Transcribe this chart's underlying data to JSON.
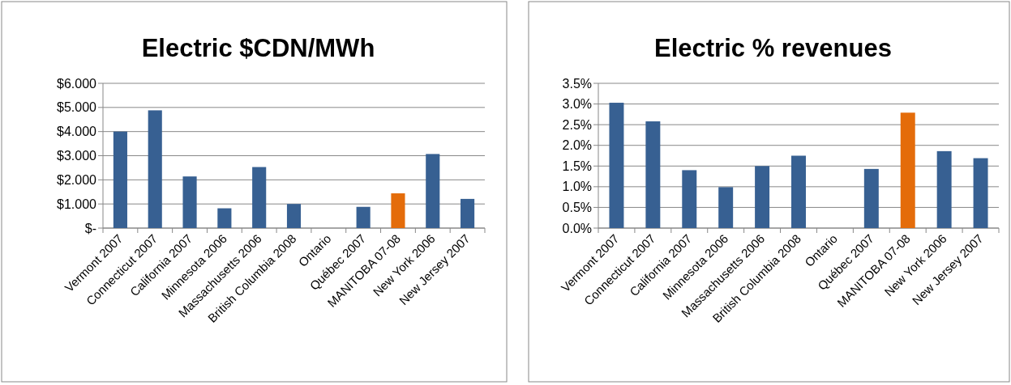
{
  "chart_data": [
    {
      "type": "bar",
      "title": "Electric $CDN/MWh",
      "categories": [
        "Vermont 2007",
        "Connecticut 2007",
        "California 2007",
        "Minnesota 2006",
        "Massachusetts 2006",
        "British Columbia 2008",
        "Ontario",
        "Québec 2007",
        "MANITOBA 07-08",
        "New York 2006",
        "New Jersey 2007"
      ],
      "values": [
        4.0,
        4.88,
        2.14,
        0.82,
        2.53,
        1.0,
        null,
        0.88,
        1.44,
        3.07,
        1.21
      ],
      "colors": [
        "#376092",
        "#376092",
        "#376092",
        "#376092",
        "#376092",
        "#376092",
        null,
        "#376092",
        "#e46c0a",
        "#376092",
        "#376092"
      ],
      "ylim": [
        0,
        6
      ],
      "yticks": [
        {
          "value": 0,
          "label": "$-"
        },
        {
          "value": 1,
          "label": "$1.000"
        },
        {
          "value": 2,
          "label": "$2.000"
        },
        {
          "value": 3,
          "label": "$3.000"
        },
        {
          "value": 4,
          "label": "$4.000"
        },
        {
          "value": 5,
          "label": "$5.000"
        },
        {
          "value": 6,
          "label": "$6.000"
        }
      ],
      "grid": "y"
    },
    {
      "type": "bar",
      "title": "Electric % revenues",
      "categories": [
        "Vermont 2007",
        "Connecticut 2007",
        "California 2007",
        "Minnesota 2006",
        "Massachusetts 2006",
        "British Columbia 2008",
        "Ontario",
        "Québec 2007",
        "MANITOBA 07-08",
        "New York 2006",
        "New Jersey 2007"
      ],
      "values": [
        3.03,
        2.58,
        1.4,
        0.99,
        1.5,
        1.75,
        null,
        1.43,
        2.79,
        1.86,
        1.69
      ],
      "colors": [
        "#376092",
        "#376092",
        "#376092",
        "#376092",
        "#376092",
        "#376092",
        null,
        "#376092",
        "#e46c0a",
        "#376092",
        "#376092"
      ],
      "ylim": [
        0,
        3.5
      ],
      "yticks": [
        {
          "value": 0,
          "label": "0.0%"
        },
        {
          "value": 0.5,
          "label": "0.5%"
        },
        {
          "value": 1,
          "label": "1.0%"
        },
        {
          "value": 1.5,
          "label": "1.5%"
        },
        {
          "value": 2,
          "label": "2.0%"
        },
        {
          "value": 2.5,
          "label": "2.5%"
        },
        {
          "value": 3,
          "label": "3.0%"
        },
        {
          "value": 3.5,
          "label": "3.5%"
        }
      ],
      "grid": "y"
    }
  ]
}
